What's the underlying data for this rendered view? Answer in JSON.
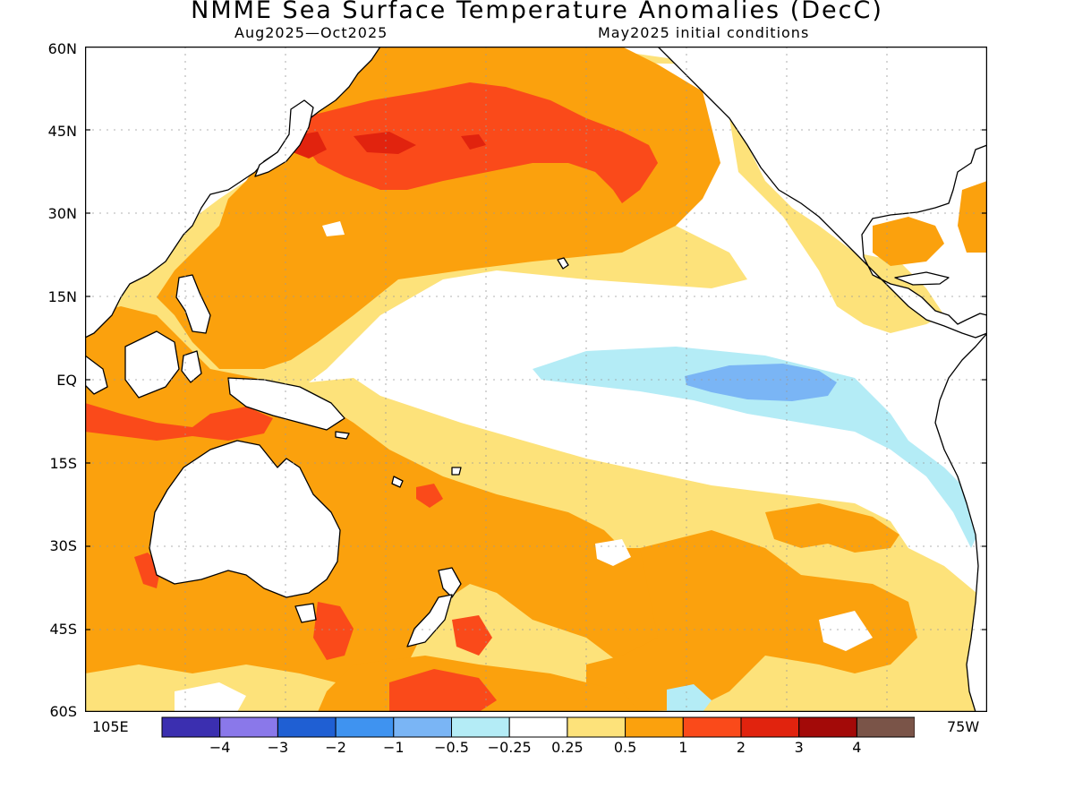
{
  "header": {
    "title": "NMME Sea Surface Temperature Anomalies (DecC)",
    "period": "Aug2025—Oct2025",
    "init": "May2025 initial conditions"
  },
  "axes": {
    "lat_labels": [
      "60N",
      "45N",
      "30N",
      "15N",
      "EQ",
      "15S",
      "30S",
      "45S",
      "60S"
    ],
    "lon_left": "105E",
    "lon_right": "75W"
  },
  "colorbar": {
    "colors": [
      "#3b2fb0",
      "#8a78ea",
      "#1f5fd3",
      "#3f93f0",
      "#7ab5f5",
      "#b4ecf6",
      "#ffffff",
      "#fde27a",
      "#fba10d",
      "#fa4a1a",
      "#e1230e",
      "#a30a08",
      "#7a5448"
    ],
    "labels": [
      "−4",
      "−3",
      "−2",
      "−1",
      "−0.5",
      "−0.25",
      "0.25",
      "0.5",
      "1",
      "2",
      "3",
      "4"
    ]
  },
  "legend_meaning": {
    "pos_025_05": "#fde27a",
    "pos_05_1": "#fba10d",
    "pos_1_2": "#fa4a1a",
    "pos_2_3": "#e1230e",
    "neg_025_05": "#b4ecf6",
    "neg_05_1": "#7ab5f5",
    "neg_1_2": "#3f93f0"
  }
}
